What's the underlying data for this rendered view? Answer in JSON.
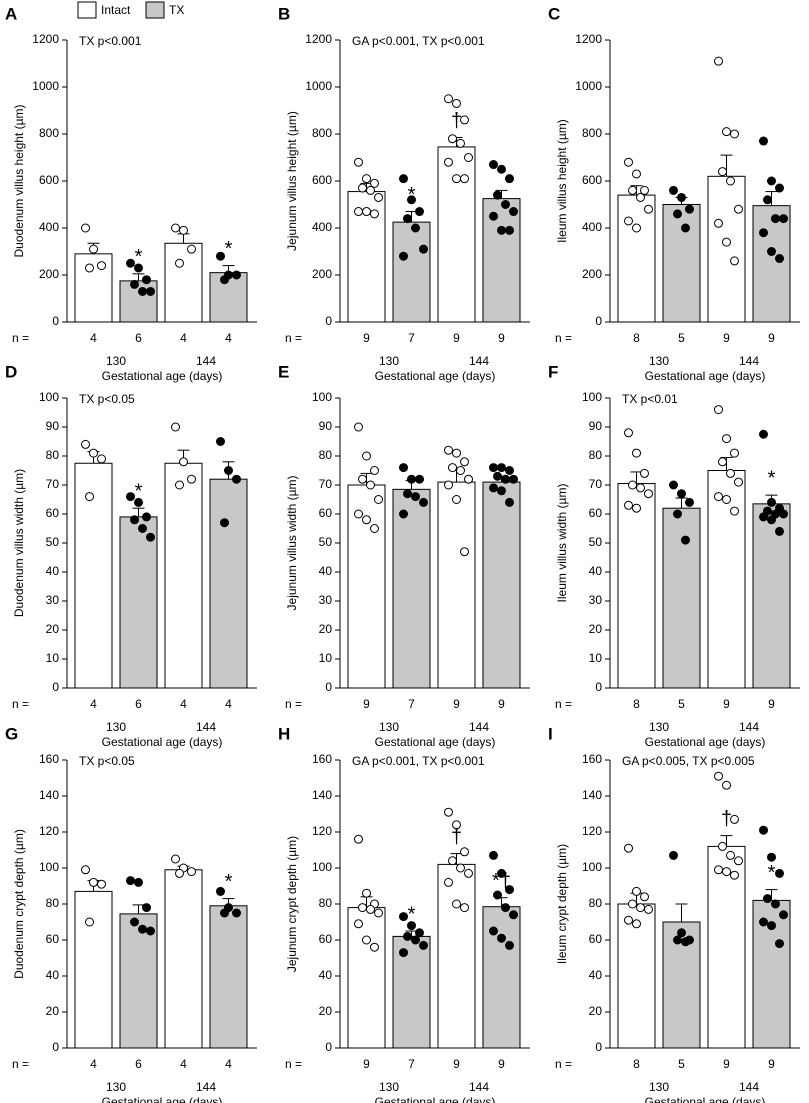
{
  "legend": [
    {
      "name": "Intact",
      "color": "#ffffff"
    },
    {
      "name": "TX",
      "color": "#c8c8c8"
    }
  ],
  "chart_data": [
    {
      "panel": "A",
      "type": "bar",
      "ylabel": "Duodenum villus height (µm)",
      "xlabel": "Gestational age (days)",
      "annotation": "TX p<0.001",
      "groups": [
        "130",
        "144"
      ],
      "n_label": "n =",
      "ylim": [
        0,
        1200
      ],
      "yticks": [
        0,
        200,
        400,
        600,
        800,
        1000,
        1200
      ],
      "series": [
        {
          "color": "#ffffff",
          "point_fill": "#ffffff",
          "values": [
            290,
            335
          ],
          "errors": [
            45,
            40
          ],
          "n": [
            4,
            4
          ],
          "markers": [
            null,
            null
          ],
          "points": [
            [
              400,
              310,
              240,
              230
            ],
            [
              400,
              390,
              310,
              250
            ]
          ]
        },
        {
          "color": "#c8c8c8",
          "point_fill": "#000000",
          "values": [
            175,
            210
          ],
          "errors": [
            30,
            30
          ],
          "n": [
            6,
            4
          ],
          "markers": [
            "*",
            "*"
          ],
          "points": [
            [
              250,
              230,
              180,
              160,
              130,
              130
            ],
            [
              280,
              200,
              200,
              180
            ]
          ]
        }
      ]
    },
    {
      "panel": "B",
      "type": "bar",
      "ylabel": "Jejunum villus height (µm)",
      "xlabel": "Gestational age (days)",
      "annotation": "GA p<0.001, TX p<0.001",
      "groups": [
        "130",
        "144"
      ],
      "n_label": "n =",
      "ylim": [
        0,
        1200
      ],
      "yticks": [
        0,
        200,
        400,
        600,
        800,
        1000,
        1200
      ],
      "series": [
        {
          "color": "#ffffff",
          "point_fill": "#ffffff",
          "values": [
            555,
            745
          ],
          "errors": [
            35,
            40
          ],
          "n": [
            9,
            9
          ],
          "markers": [
            null,
            "†"
          ],
          "points": [
            [
              680,
              610,
              590,
              570,
              560,
              530,
              470,
              470,
              460
            ],
            [
              950,
              930,
              860,
              780,
              760,
              700,
              680,
              610,
              610
            ]
          ]
        },
        {
          "color": "#c8c8c8",
          "point_fill": "#000000",
          "values": [
            425,
            525
          ],
          "errors": [
            45,
            35
          ],
          "n": [
            7,
            9
          ],
          "markers": [
            "*",
            "*"
          ],
          "points": [
            [
              610,
              520,
              470,
              440,
              400,
              310,
              280
            ],
            [
              670,
              650,
              610,
              540,
              500,
              470,
              450,
              390,
              390
            ]
          ]
        }
      ]
    },
    {
      "panel": "C",
      "type": "bar",
      "ylabel": "Ileum villus height (µm)",
      "xlabel": "Gestational age (days)",
      "groups": [
        "130",
        "144"
      ],
      "n_label": "n =",
      "ylim": [
        0,
        1200
      ],
      "yticks": [
        0,
        200,
        400,
        600,
        800,
        1000,
        1200
      ],
      "series": [
        {
          "color": "#ffffff",
          "point_fill": "#ffffff",
          "values": [
            540,
            620
          ],
          "errors": [
            40,
            90
          ],
          "n": [
            8,
            9
          ],
          "markers": [
            null,
            null
          ],
          "points": [
            [
              680,
              630,
              560,
              560,
              530,
              480,
              430,
              400
            ],
            [
              1110,
              810,
              800,
              640,
              600,
              480,
              420,
              340,
              260
            ]
          ]
        },
        {
          "color": "#c8c8c8",
          "point_fill": "#000000",
          "values": [
            500,
            495
          ],
          "errors": [
            30,
            60
          ],
          "n": [
            5,
            9
          ],
          "markers": [
            null,
            null
          ],
          "points": [
            [
              560,
              530,
              480,
              460,
              400
            ],
            [
              770,
              600,
              570,
              520,
              440,
              440,
              380,
              300,
              270
            ]
          ]
        }
      ]
    },
    {
      "panel": "D",
      "type": "bar",
      "ylabel": "Duodenum villus width (µm)",
      "xlabel": "Gestational age (days)",
      "annotation": "TX p<0.05",
      "groups": [
        "130",
        "144"
      ],
      "n_label": "n =",
      "ylim": [
        0,
        100
      ],
      "yticks": [
        0,
        10,
        20,
        30,
        40,
        50,
        60,
        70,
        80,
        90,
        100
      ],
      "series": [
        {
          "color": "#ffffff",
          "point_fill": "#ffffff",
          "values": [
            77.5,
            77.5
          ],
          "errors": [
            4,
            4.5
          ],
          "n": [
            4,
            4
          ],
          "markers": [
            null,
            null
          ],
          "points": [
            [
              84,
              81,
              79,
              66
            ],
            [
              90,
              78,
              72,
              70
            ]
          ]
        },
        {
          "color": "#c8c8c8",
          "point_fill": "#000000",
          "values": [
            59,
            72
          ],
          "errors": [
            3,
            6
          ],
          "n": [
            6,
            4
          ],
          "markers": [
            "*",
            null
          ],
          "points": [
            [
              66,
              64,
              59,
              58,
              55,
              52
            ],
            [
              85,
              75,
              72,
              57
            ]
          ]
        }
      ]
    },
    {
      "panel": "E",
      "type": "bar",
      "ylabel": "Jejunum villus width (µm)",
      "xlabel": "Gestational age (days)",
      "groups": [
        "130",
        "144"
      ],
      "n_label": "n =",
      "ylim": [
        0,
        100
      ],
      "yticks": [
        0,
        10,
        20,
        30,
        40,
        50,
        60,
        70,
        80,
        90,
        100
      ],
      "series": [
        {
          "color": "#ffffff",
          "point_fill": "#ffffff",
          "values": [
            70,
            71
          ],
          "errors": [
            4,
            4
          ],
          "n": [
            9,
            9
          ],
          "markers": [
            null,
            null
          ],
          "points": [
            [
              90,
              80,
              75,
              72,
              70,
              65,
              60,
              58,
              55
            ],
            [
              82,
              81,
              78,
              76,
              75,
              72,
              70,
              65,
              47
            ]
          ]
        },
        {
          "color": "#c8c8c8",
          "point_fill": "#000000",
          "values": [
            68.5,
            71
          ],
          "errors": [
            3,
            2
          ],
          "n": [
            7,
            9
          ],
          "markers": [
            null,
            null
          ],
          "points": [
            [
              76,
              72,
              72,
              67,
              66,
              64,
              60
            ],
            [
              76,
              76,
              75,
              73,
              72,
              72,
              69,
              68,
              64
            ]
          ]
        }
      ]
    },
    {
      "panel": "F",
      "type": "bar",
      "ylabel": "Ileum villus width (µm)",
      "xlabel": "Gestational age (days)",
      "annotation": "TX p<0.01",
      "groups": [
        "130",
        "144"
      ],
      "n_label": "n =",
      "ylim": [
        0,
        100
      ],
      "yticks": [
        0,
        10,
        20,
        30,
        40,
        50,
        60,
        70,
        80,
        90,
        100
      ],
      "series": [
        {
          "color": "#ffffff",
          "point_fill": "#ffffff",
          "values": [
            70.5,
            75
          ],
          "errors": [
            4,
            4.5
          ],
          "n": [
            8,
            9
          ],
          "markers": [
            null,
            null
          ],
          "points": [
            [
              88,
              81,
              74,
              70,
              69,
              67,
              63,
              62
            ],
            [
              96,
              86,
              81,
              78,
              74,
              71,
              66,
              65,
              61
            ]
          ]
        },
        {
          "color": "#c8c8c8",
          "point_fill": "#000000",
          "values": [
            62,
            63.5
          ],
          "errors": [
            3.5,
            3
          ],
          "n": [
            5,
            9
          ],
          "markers": [
            null,
            "*"
          ],
          "points": [
            [
              70,
              67,
              64,
              60,
              51
            ],
            [
              87.5,
              64,
              62,
              61,
              60,
              60,
              59,
              58,
              54
            ]
          ]
        }
      ]
    },
    {
      "panel": "G",
      "type": "bar",
      "ylabel": "Duodenum crypt depth (µm)",
      "xlabel": "Gestational age (days)",
      "annotation": "TX p<0.05",
      "groups": [
        "130",
        "144"
      ],
      "n_label": "n =",
      "ylim": [
        0,
        160
      ],
      "yticks": [
        0,
        20,
        40,
        60,
        80,
        100,
        120,
        140,
        160
      ],
      "series": [
        {
          "color": "#ffffff",
          "point_fill": "#ffffff",
          "values": [
            87,
            99
          ],
          "errors": [
            6,
            2
          ],
          "n": [
            4,
            4
          ],
          "markers": [
            null,
            null
          ],
          "points": [
            [
              99,
              92,
              91,
              70
            ],
            [
              105,
              100,
              98,
              97
            ]
          ]
        },
        {
          "color": "#c8c8c8",
          "point_fill": "#000000",
          "values": [
            74.5,
            79
          ],
          "errors": [
            5,
            4
          ],
          "n": [
            6,
            4
          ],
          "markers": [
            null,
            "*"
          ],
          "points": [
            [
              93,
              92,
              78,
              70,
              66,
              65
            ],
            [
              87,
              78,
              75,
              75
            ]
          ]
        }
      ]
    },
    {
      "panel": "H",
      "type": "bar",
      "ylabel": "Jejunum crypt depth (µm)",
      "xlabel": "Gestational age (days)",
      "annotation": "GA p<0.001, TX p<0.001",
      "groups": [
        "130",
        "144"
      ],
      "n_label": "n =",
      "ylim": [
        0,
        160
      ],
      "yticks": [
        0,
        20,
        40,
        60,
        80,
        100,
        120,
        140,
        160
      ],
      "series": [
        {
          "color": "#ffffff",
          "point_fill": "#ffffff",
          "values": [
            78,
            102
          ],
          "errors": [
            6,
            6
          ],
          "n": [
            9,
            9
          ],
          "markers": [
            null,
            "†"
          ],
          "points": [
            [
              116,
              86,
              80,
              78,
              77,
              75,
              69,
              60,
              56
            ],
            [
              131,
              124,
              109,
              104,
              100,
              97,
              92,
              80,
              78
            ]
          ]
        },
        {
          "color": "#c8c8c8",
          "point_fill": "#000000",
          "values": [
            62,
            78.5
          ],
          "errors": [
            3,
            5
          ],
          "n": [
            7,
            9
          ],
          "markers": [
            "*",
            "*†"
          ],
          "points": [
            [
              73,
              68,
              64,
              62,
              60,
              57,
              53
            ],
            [
              107,
              97,
              88,
              85,
              78,
              74,
              65,
              61,
              57
            ]
          ]
        }
      ]
    },
    {
      "panel": "I",
      "type": "bar",
      "ylabel": "Ileum crypt depth (µm)",
      "xlabel": "Gestational age (days)",
      "annotation": "GA p<0.005, TX p<0.005",
      "groups": [
        "130",
        "144"
      ],
      "n_label": "n =",
      "ylim": [
        0,
        160
      ],
      "yticks": [
        0,
        20,
        40,
        60,
        80,
        100,
        120,
        140,
        160
      ],
      "series": [
        {
          "color": "#ffffff",
          "point_fill": "#ffffff",
          "values": [
            80,
            112
          ],
          "errors": [
            6,
            6
          ],
          "n": [
            8,
            9
          ],
          "markers": [
            null,
            "†"
          ],
          "points": [
            [
              111,
              87,
              84,
              80,
              78,
              77,
              71,
              69
            ],
            [
              151,
              146,
              127,
              112,
              107,
              104,
              99,
              98,
              96
            ]
          ]
        },
        {
          "color": "#c8c8c8",
          "point_fill": "#000000",
          "values": [
            70,
            82
          ],
          "errors": [
            10,
            6
          ],
          "n": [
            5,
            9
          ],
          "markers": [
            null,
            "*"
          ],
          "points": [
            [
              107,
              64,
              60,
              60,
              59
            ],
            [
              121,
              106,
              97,
              83,
              80,
              74,
              70,
              68,
              58
            ]
          ]
        }
      ]
    }
  ]
}
